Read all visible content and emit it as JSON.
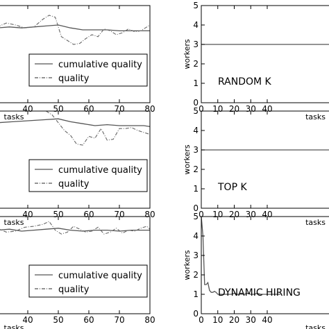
{
  "chart_data": [
    {
      "type": "line",
      "panel": "quality-top",
      "xlabel": "tasks",
      "ylabel": "",
      "x_ticks": [
        40,
        50,
        60,
        70,
        80
      ],
      "xlim": [
        30,
        80
      ],
      "ylim": [
        0.0,
        1.0
      ],
      "legend": {
        "position": "bottom-right",
        "entries": [
          "cumulative quality",
          "quality"
        ]
      },
      "series": [
        {
          "name": "cumulative quality",
          "style": "solid",
          "x": [
            30,
            34,
            38,
            42,
            46,
            50,
            54,
            58,
            62,
            66,
            70,
            74,
            78,
            80
          ],
          "y": [
            0.77,
            0.78,
            0.77,
            0.78,
            0.79,
            0.8,
            0.77,
            0.75,
            0.75,
            0.75,
            0.74,
            0.74,
            0.74,
            0.74
          ]
        },
        {
          "name": "quality",
          "style": "dashdot",
          "x": [
            30,
            33,
            36,
            39,
            42,
            45,
            47,
            49,
            51,
            53,
            55,
            57,
            59,
            61,
            63,
            65,
            67,
            69,
            71,
            73,
            75,
            77,
            79,
            80
          ],
          "y": [
            0.78,
            0.82,
            0.8,
            0.77,
            0.78,
            0.86,
            0.9,
            0.88,
            0.68,
            0.64,
            0.6,
            0.61,
            0.66,
            0.7,
            0.68,
            0.76,
            0.74,
            0.7,
            0.72,
            0.76,
            0.73,
            0.74,
            0.78,
            0.8
          ]
        }
      ]
    },
    {
      "type": "line",
      "panel": "workers-top",
      "xlabel": "tasks",
      "ylabel": "workers",
      "annotation": "RANDOM K",
      "x_ticks": [
        0,
        10,
        20,
        30,
        40
      ],
      "y_ticks": [
        0,
        1,
        2,
        3,
        4,
        5
      ],
      "xlim": [
        0,
        80
      ],
      "ylim": [
        0,
        5
      ],
      "series": [
        {
          "style": "solid",
          "x": [
            0,
            80
          ],
          "y": [
            3,
            3
          ]
        }
      ]
    },
    {
      "type": "line",
      "panel": "quality-middle",
      "xlabel": "tasks",
      "ylabel": "",
      "x_ticks": [
        40,
        50,
        60,
        70,
        80
      ],
      "xlim": [
        30,
        80
      ],
      "ylim": [
        0.0,
        1.0
      ],
      "legend": {
        "position": "bottom-right",
        "entries": [
          "cumulative quality",
          "quality"
        ]
      },
      "series": [
        {
          "name": "cumulative quality",
          "style": "solid",
          "x": [
            30,
            35,
            40,
            45,
            50,
            54,
            58,
            62,
            66,
            70,
            74,
            78,
            80
          ],
          "y": [
            0.88,
            0.89,
            0.9,
            0.91,
            0.92,
            0.89,
            0.87,
            0.85,
            0.86,
            0.85,
            0.85,
            0.85,
            0.84
          ]
        },
        {
          "name": "quality",
          "style": "dashdot",
          "x": [
            46,
            48,
            50,
            52,
            54,
            56,
            58,
            60,
            62,
            64,
            66,
            68,
            70,
            72,
            74,
            76,
            78,
            80
          ],
          "y": [
            1.0,
            0.96,
            0.88,
            0.8,
            0.75,
            0.66,
            0.65,
            0.74,
            0.72,
            0.82,
            0.7,
            0.71,
            0.82,
            0.82,
            0.83,
            0.8,
            0.78,
            0.76
          ]
        }
      ]
    },
    {
      "type": "line",
      "panel": "workers-middle",
      "xlabel": "tasks",
      "ylabel": "workers",
      "annotation": "TOP K",
      "x_ticks": [
        0,
        10,
        20,
        30,
        40
      ],
      "y_ticks": [
        0,
        1,
        2,
        3,
        4,
        5
      ],
      "xlim": [
        0,
        80
      ],
      "ylim": [
        0,
        5
      ],
      "series": [
        {
          "style": "solid",
          "x": [
            0,
            80
          ],
          "y": [
            3,
            3
          ]
        }
      ]
    },
    {
      "type": "line",
      "panel": "quality-bottom",
      "xlabel": "tasks",
      "ylabel": "",
      "x_ticks": [
        40,
        50,
        60,
        70,
        80
      ],
      "xlim": [
        30,
        80
      ],
      "ylim": [
        0.0,
        1.0
      ],
      "legend": {
        "position": "bottom-right",
        "entries": [
          "cumulative quality",
          "quality"
        ]
      },
      "series": [
        {
          "name": "cumulative quality",
          "style": "solid",
          "x": [
            30,
            34,
            38,
            42,
            46,
            50,
            54,
            58,
            62,
            66,
            70,
            74,
            78,
            80
          ],
          "y": [
            0.86,
            0.87,
            0.85,
            0.86,
            0.87,
            0.88,
            0.86,
            0.85,
            0.86,
            0.86,
            0.85,
            0.86,
            0.86,
            0.86
          ]
        },
        {
          "name": "quality",
          "style": "dashdot",
          "x": [
            30,
            33,
            36,
            39,
            42,
            45,
            47,
            49,
            51,
            53,
            55,
            57,
            59,
            61,
            63,
            65,
            67,
            69,
            71,
            73,
            75,
            77,
            79,
            80
          ],
          "y": [
            0.88,
            0.84,
            0.85,
            0.89,
            0.9,
            0.92,
            0.95,
            0.86,
            0.82,
            0.84,
            0.9,
            0.87,
            0.84,
            0.85,
            0.89,
            0.82,
            0.84,
            0.88,
            0.83,
            0.86,
            0.85,
            0.88,
            0.9,
            0.87
          ]
        }
      ]
    },
    {
      "type": "line",
      "panel": "workers-bottom",
      "xlabel": "tasks",
      "ylabel": "workers",
      "annotation": "DYNAMIC HIRING",
      "x_ticks": [
        0,
        10,
        20,
        30,
        40
      ],
      "y_ticks": [
        0,
        1,
        2,
        3,
        4,
        5
      ],
      "xlim": [
        0,
        80
      ],
      "ylim": [
        0,
        5
      ],
      "series": [
        {
          "style": "solid",
          "x": [
            0,
            1,
            2,
            3,
            4,
            5,
            6,
            7,
            8,
            9,
            10,
            12,
            14,
            16,
            18,
            20,
            22,
            24,
            26,
            28,
            30,
            32,
            34,
            36,
            38,
            40,
            44,
            48
          ],
          "y": [
            5.0,
            4.0,
            1.5,
            1.5,
            1.6,
            1.2,
            1.1,
            1.1,
            1.15,
            1.1,
            1.0,
            1.0,
            1.0,
            1.0,
            1.0,
            1.05,
            1.0,
            1.0,
            1.0,
            1.05,
            1.0,
            1.0,
            1.05,
            1.0,
            1.0,
            1.0,
            1.0,
            1.0
          ]
        }
      ]
    }
  ]
}
